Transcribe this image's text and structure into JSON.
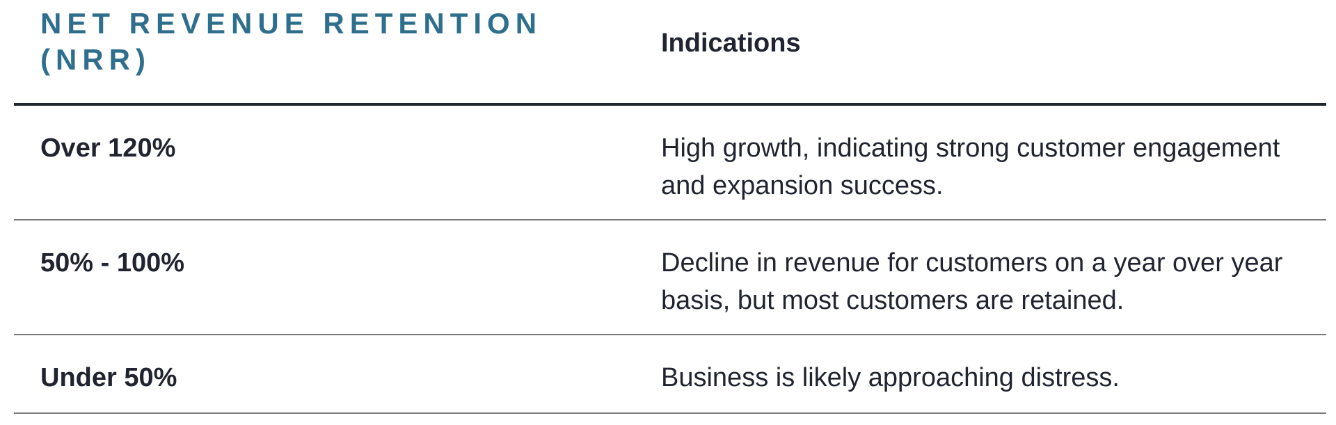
{
  "table": {
    "header": {
      "col1_line1": "NET REVENUE RETENTION",
      "col1_line2": "(NRR)",
      "col2": "Indications"
    },
    "rows": [
      {
        "range": "Over 120%",
        "indication": "High growth, indicating strong customer engagement and expansion success."
      },
      {
        "range": "50% - 100%",
        "indication": "Decline in revenue for customers on a year over year basis, but most customers are retained."
      },
      {
        "range": "Under 50%",
        "indication": "Business is likely approaching distress."
      }
    ],
    "colors": {
      "header_accent": "#2f6f8e",
      "text": "#1f2430",
      "rule_heavy": "#1f2430",
      "rule_light": "#7a7a7a"
    }
  }
}
